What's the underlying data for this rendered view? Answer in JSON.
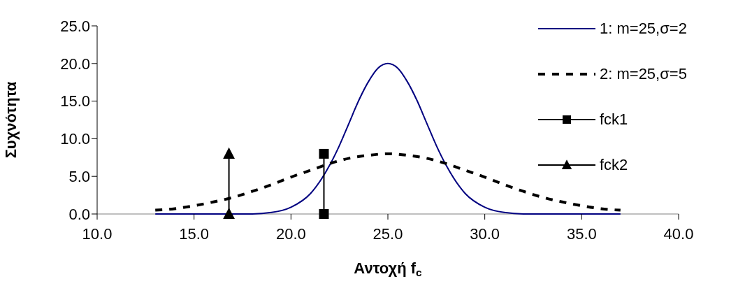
{
  "chart_data": {
    "type": "line",
    "xlabel": "Αντοχή f$_{c}$",
    "ylabel": "Συχνότητα",
    "xlim": [
      10,
      40
    ],
    "xticks": [
      {
        "value": 10,
        "label": "10.0"
      },
      {
        "value": 15,
        "label": "15.0"
      },
      {
        "value": 20,
        "label": "20.0"
      },
      {
        "value": 25,
        "label": "25.0"
      },
      {
        "value": 30,
        "label": "30.0"
      },
      {
        "value": 35,
        "label": "35.0"
      },
      {
        "value": 40,
        "label": "40.0"
      }
    ],
    "ylim": [
      0,
      25
    ],
    "yticks": [
      {
        "value": 0,
        "label": "0.0"
      },
      {
        "value": 5,
        "label": "5.0"
      },
      {
        "value": 10,
        "label": "10.0"
      },
      {
        "value": 15,
        "label": "15.0"
      },
      {
        "value": 20,
        "label": "20.0"
      },
      {
        "value": 25,
        "label": "25.0"
      }
    ],
    "grid": false,
    "legend": "top right",
    "series": [
      {
        "name": "1: m=25,σ=2",
        "color": "#000080",
        "marker": "none",
        "line_style": "solid",
        "x": [
          13,
          14,
          15,
          16,
          17,
          18,
          19,
          20,
          21,
          22,
          22.5,
          23,
          23.5,
          24,
          24.5,
          25,
          25.5,
          26,
          26.5,
          27,
          27.5,
          28,
          29,
          30,
          31,
          32,
          33,
          34,
          35,
          36,
          37
        ],
        "values": [
          0,
          0,
          0,
          0,
          0,
          0,
          0.2,
          0.9,
          2.7,
          6.5,
          9.1,
          12.1,
          15.1,
          17.6,
          19.4,
          20,
          19.4,
          17.6,
          15.1,
          12.1,
          9.1,
          6.5,
          2.7,
          0.9,
          0.2,
          0,
          0,
          0,
          0,
          0,
          0
        ]
      },
      {
        "name": "2: m=25,σ=5",
        "color": "#000000",
        "marker": "none",
        "line_style": "dashed",
        "x": [
          13,
          14,
          15,
          16,
          17,
          18,
          19,
          20,
          21,
          22,
          23,
          24,
          25,
          26,
          27,
          28,
          29,
          30,
          31,
          32,
          33,
          34,
          35,
          36,
          37
        ],
        "values": [
          0.5,
          0.7,
          1.1,
          1.6,
          2.2,
          3.0,
          3.9,
          4.9,
          5.8,
          6.7,
          7.4,
          7.8,
          8,
          7.8,
          7.4,
          6.7,
          5.8,
          4.9,
          3.9,
          3.0,
          2.2,
          1.6,
          1.1,
          0.7,
          0.5
        ]
      },
      {
        "name": "fck1",
        "color": "#000000",
        "marker": "square",
        "line_style": "solid",
        "x": [
          21.7,
          21.7
        ],
        "values": [
          0,
          8
        ]
      },
      {
        "name": "fck2",
        "color": "#000000",
        "marker": "triangle",
        "line_style": "solid",
        "x": [
          16.8,
          16.8
        ],
        "values": [
          0,
          8
        ]
      }
    ]
  }
}
